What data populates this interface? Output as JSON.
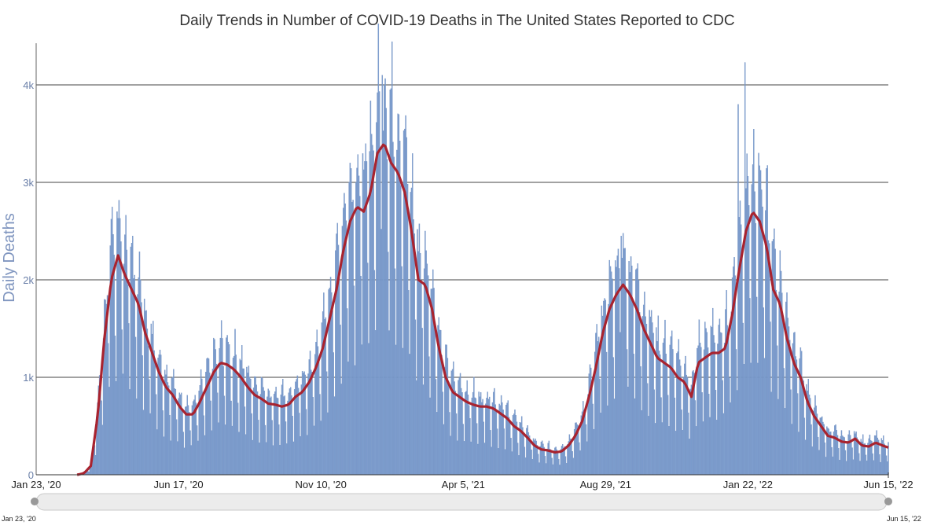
{
  "title": "Daily Trends in Number of COVID-19 Deaths in The United States Reported to CDC",
  "colors": {
    "bars": "#7f9fcf",
    "bar_stroke": "#6b8cc0",
    "line": "#a8232f",
    "grid": "#444444",
    "axis_text": "#6a7fa8"
  },
  "navigator": {
    "start_label": "Jan 23, '20",
    "end_label": "Jun 15, '22"
  },
  "chart_data": {
    "type": "bar",
    "title": "Daily Trends in Number of COVID-19 Deaths in The United States Reported to CDC",
    "ylabel": "Daily Deaths",
    "xlabel": "",
    "x_start": "Jan 23, '20",
    "x_end": "Jun 15, '22",
    "xticks": [
      "Jan 23, '20",
      "Jun 17, '20",
      "Nov 10, '20",
      "Apr 5, '21",
      "Aug 29, '21",
      "Jan 22, '22",
      "Jun 15, '22"
    ],
    "yticks": [
      "0",
      "1k",
      "2k",
      "3k",
      "4k"
    ],
    "ylim": [
      0,
      4000
    ],
    "grid": true,
    "series": [
      {
        "type": "bar",
        "values": []
      },
      {
        "type": "line",
        "values": []
      }
    ],
    "weekly_seven_day_average": [
      [
        "2020-01-23",
        0
      ],
      [
        "2020-02-06",
        0
      ],
      [
        "2020-02-20",
        0
      ],
      [
        "2020-03-05",
        0
      ],
      [
        "2020-03-12",
        15
      ],
      [
        "2020-03-19",
        90
      ],
      [
        "2020-03-26",
        600
      ],
      [
        "2020-04-02",
        1400
      ],
      [
        "2020-04-09",
        2000
      ],
      [
        "2020-04-16",
        2250
      ],
      [
        "2020-04-23",
        2050
      ],
      [
        "2020-04-30",
        1900
      ],
      [
        "2020-05-07",
        1750
      ],
      [
        "2020-05-14",
        1450
      ],
      [
        "2020-05-21",
        1250
      ],
      [
        "2020-05-28",
        1050
      ],
      [
        "2020-06-04",
        900
      ],
      [
        "2020-06-11",
        820
      ],
      [
        "2020-06-18",
        700
      ],
      [
        "2020-06-25",
        620
      ],
      [
        "2020-07-02",
        620
      ],
      [
        "2020-07-09",
        750
      ],
      [
        "2020-07-16",
        900
      ],
      [
        "2020-07-23",
        1050
      ],
      [
        "2020-07-30",
        1150
      ],
      [
        "2020-08-06",
        1130
      ],
      [
        "2020-08-13",
        1080
      ],
      [
        "2020-08-20",
        1000
      ],
      [
        "2020-08-27",
        900
      ],
      [
        "2020-09-03",
        820
      ],
      [
        "2020-09-10",
        780
      ],
      [
        "2020-09-17",
        730
      ],
      [
        "2020-09-24",
        720
      ],
      [
        "2020-10-01",
        700
      ],
      [
        "2020-10-08",
        720
      ],
      [
        "2020-10-15",
        800
      ],
      [
        "2020-10-22",
        850
      ],
      [
        "2020-10-29",
        950
      ],
      [
        "2020-11-05",
        1100
      ],
      [
        "2020-11-12",
        1300
      ],
      [
        "2020-11-19",
        1600
      ],
      [
        "2020-11-26",
        1900
      ],
      [
        "2020-12-03",
        2300
      ],
      [
        "2020-12-10",
        2600
      ],
      [
        "2020-12-17",
        2750
      ],
      [
        "2020-12-24",
        2700
      ],
      [
        "2020-12-31",
        2900
      ],
      [
        "2021-01-07",
        3300
      ],
      [
        "2021-01-14",
        3400
      ],
      [
        "2021-01-21",
        3200
      ],
      [
        "2021-01-28",
        3100
      ],
      [
        "2021-02-04",
        2900
      ],
      [
        "2021-02-11",
        2500
      ],
      [
        "2021-02-18",
        2000
      ],
      [
        "2021-02-25",
        1950
      ],
      [
        "2021-03-04",
        1700
      ],
      [
        "2021-03-11",
        1300
      ],
      [
        "2021-03-18",
        1000
      ],
      [
        "2021-03-25",
        850
      ],
      [
        "2021-04-01",
        800
      ],
      [
        "2021-04-08",
        750
      ],
      [
        "2021-04-15",
        720
      ],
      [
        "2021-04-22",
        700
      ],
      [
        "2021-04-29",
        700
      ],
      [
        "2021-05-06",
        680
      ],
      [
        "2021-05-13",
        630
      ],
      [
        "2021-05-20",
        580
      ],
      [
        "2021-05-27",
        500
      ],
      [
        "2021-06-03",
        450
      ],
      [
        "2021-06-10",
        380
      ],
      [
        "2021-06-17",
        300
      ],
      [
        "2021-06-24",
        260
      ],
      [
        "2021-07-01",
        250
      ],
      [
        "2021-07-08",
        230
      ],
      [
        "2021-07-15",
        240
      ],
      [
        "2021-07-22",
        300
      ],
      [
        "2021-07-29",
        400
      ],
      [
        "2021-08-05",
        550
      ],
      [
        "2021-08-12",
        800
      ],
      [
        "2021-08-19",
        1100
      ],
      [
        "2021-08-26",
        1450
      ],
      [
        "2021-09-02",
        1700
      ],
      [
        "2021-09-09",
        1850
      ],
      [
        "2021-09-16",
        1950
      ],
      [
        "2021-09-23",
        1850
      ],
      [
        "2021-09-30",
        1700
      ],
      [
        "2021-10-07",
        1500
      ],
      [
        "2021-10-14",
        1350
      ],
      [
        "2021-10-21",
        1200
      ],
      [
        "2021-10-28",
        1150
      ],
      [
        "2021-11-04",
        1100
      ],
      [
        "2021-11-11",
        1000
      ],
      [
        "2021-11-18",
        950
      ],
      [
        "2021-11-25",
        800
      ],
      [
        "2021-12-02",
        1150
      ],
      [
        "2021-12-09",
        1200
      ],
      [
        "2021-12-16",
        1250
      ],
      [
        "2021-12-23",
        1250
      ],
      [
        "2021-12-30",
        1300
      ],
      [
        "2022-01-06",
        1650
      ],
      [
        "2022-01-13",
        2100
      ],
      [
        "2022-01-20",
        2500
      ],
      [
        "2022-01-27",
        2700
      ],
      [
        "2022-02-03",
        2600
      ],
      [
        "2022-02-10",
        2350
      ],
      [
        "2022-02-17",
        1900
      ],
      [
        "2022-02-24",
        1750
      ],
      [
        "2022-03-03",
        1400
      ],
      [
        "2022-03-10",
        1150
      ],
      [
        "2022-03-17",
        1000
      ],
      [
        "2022-03-24",
        750
      ],
      [
        "2022-03-31",
        600
      ],
      [
        "2022-04-07",
        500
      ],
      [
        "2022-04-14",
        400
      ],
      [
        "2022-04-21",
        380
      ],
      [
        "2022-04-28",
        340
      ],
      [
        "2022-05-05",
        330
      ],
      [
        "2022-05-12",
        370
      ],
      [
        "2022-05-19",
        300
      ],
      [
        "2022-05-26",
        290
      ],
      [
        "2022-06-02",
        330
      ],
      [
        "2022-06-09",
        300
      ],
      [
        "2022-06-15",
        280
      ]
    ],
    "daily_peaks": [
      [
        "2020-04-15",
        2700
      ],
      [
        "2020-05-01",
        2450
      ],
      [
        "2020-08-01",
        1400
      ],
      [
        "2020-12-16",
        3000
      ],
      [
        "2021-01-12",
        4100
      ],
      [
        "2021-01-20",
        3950
      ],
      [
        "2021-09-14",
        2450
      ],
      [
        "2022-01-12",
        3800
      ],
      [
        "2022-01-19",
        4230
      ],
      [
        "2022-02-02",
        3300
      ]
    ]
  }
}
